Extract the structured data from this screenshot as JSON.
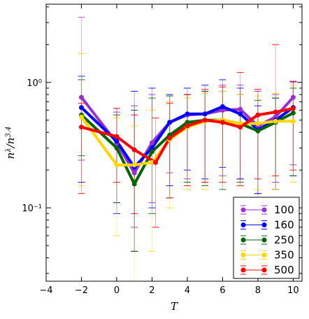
{
  "chart_data": {
    "type": "line",
    "title": "",
    "xlabel": "T",
    "ylabel": "n^λ / n^3.4",
    "yscale": "log",
    "xlim": [
      -4,
      10.5
    ],
    "ylim": [
      0.026,
      4.2
    ],
    "x_ticks": [
      -4,
      -2,
      0,
      2,
      4,
      6,
      8,
      10
    ],
    "x_tick_labels": [
      "−4",
      "−2",
      "0",
      "2",
      "4",
      "6",
      "8",
      "10"
    ],
    "y_ticks": [
      0.1,
      1.0
    ],
    "y_tick_labels": [
      "10⁻¹",
      "10⁰"
    ],
    "grid": false,
    "legend_position": "bottom-right",
    "series": [
      {
        "name": "100",
        "color": "#9932CC",
        "x": [
          -2,
          0,
          1,
          2,
          3,
          4,
          5,
          6,
          7,
          8,
          9,
          10
        ],
        "y": [
          0.76,
          0.33,
          0.19,
          0.33,
          0.48,
          0.55,
          0.56,
          0.6,
          0.61,
          0.45,
          0.53,
          0.76
        ],
        "err_low": [
          0.24,
          0.11,
          0.07,
          0.11,
          0.19,
          0.17,
          0.16,
          0.18,
          0.17,
          0.13,
          0.16,
          0.22
        ],
        "err_high": [
          3.3,
          0.58,
          0.65,
          0.8,
          0.7,
          0.8,
          0.85,
          0.95,
          0.95,
          0.85,
          0.8,
          1.0
        ]
      },
      {
        "name": "160",
        "color": "#0000FF",
        "x": [
          -2,
          0,
          1,
          2,
          3,
          4,
          5,
          6,
          7,
          8,
          9,
          10
        ],
        "y": [
          0.63,
          0.34,
          0.21,
          0.3,
          0.48,
          0.56,
          0.56,
          0.64,
          0.56,
          0.42,
          0.5,
          0.63
        ],
        "err_low": [
          0.16,
          0.09,
          0.045,
          0.1,
          0.15,
          0.2,
          0.17,
          0.21,
          0.17,
          0.13,
          0.14,
          0.18
        ],
        "err_high": [
          1.12,
          0.62,
          0.85,
          0.9,
          0.8,
          0.9,
          0.95,
          1.05,
          0.9,
          0.65,
          0.75,
          1.02
        ]
      },
      {
        "name": "250",
        "color": "#006400",
        "x": [
          -2,
          0,
          1,
          2,
          3,
          4,
          5,
          6,
          7,
          8,
          9,
          10
        ],
        "y": [
          0.55,
          0.3,
          0.155,
          0.28,
          0.38,
          0.48,
          0.5,
          0.5,
          0.47,
          0.41,
          0.48,
          0.57
        ],
        "err_low": [
          0.26,
          0.11,
          0.045,
          0.09,
          0.12,
          0.16,
          0.15,
          0.14,
          0.16,
          0.12,
          0.14,
          0.18
        ],
        "err_high": [
          1.05,
          0.55,
          0.6,
          0.75,
          0.78,
          0.8,
          0.85,
          0.85,
          0.8,
          0.72,
          0.75,
          0.9
        ]
      },
      {
        "name": "350",
        "color": "#FFD700",
        "x": [
          -2,
          0,
          1,
          2,
          3,
          4,
          5,
          6,
          7,
          8,
          9,
          10
        ],
        "y": [
          0.53,
          0.22,
          0.22,
          0.23,
          0.35,
          0.44,
          0.49,
          0.5,
          0.47,
          0.47,
          0.49,
          0.49
        ],
        "err_low": [
          0.15,
          0.06,
          0.02,
          0.045,
          0.1,
          0.14,
          0.14,
          0.16,
          0.15,
          0.14,
          0.14,
          0.16
        ],
        "err_high": [
          1.7,
          0.52,
          0.45,
          0.6,
          0.7,
          0.75,
          0.82,
          0.85,
          0.8,
          0.78,
          0.82,
          0.95
        ]
      },
      {
        "name": "500",
        "color": "#FF0000",
        "x": [
          -2,
          0,
          1,
          2.2,
          3,
          4,
          5,
          6,
          7,
          8,
          9,
          10
        ],
        "y": [
          0.44,
          0.37,
          0.29,
          0.23,
          0.36,
          0.45,
          0.5,
          0.48,
          0.44,
          0.55,
          0.58,
          0.62
        ],
        "err_low": [
          0.13,
          0.16,
          0.09,
          0.07,
          0.12,
          0.15,
          0.16,
          0.16,
          0.15,
          0.17,
          0.18,
          0.2
        ],
        "err_high": [
          0.68,
          0.62,
          0.55,
          0.52,
          0.68,
          0.8,
          0.88,
          0.92,
          1.2,
          0.88,
          2.0,
          1.02
        ]
      }
    ]
  }
}
